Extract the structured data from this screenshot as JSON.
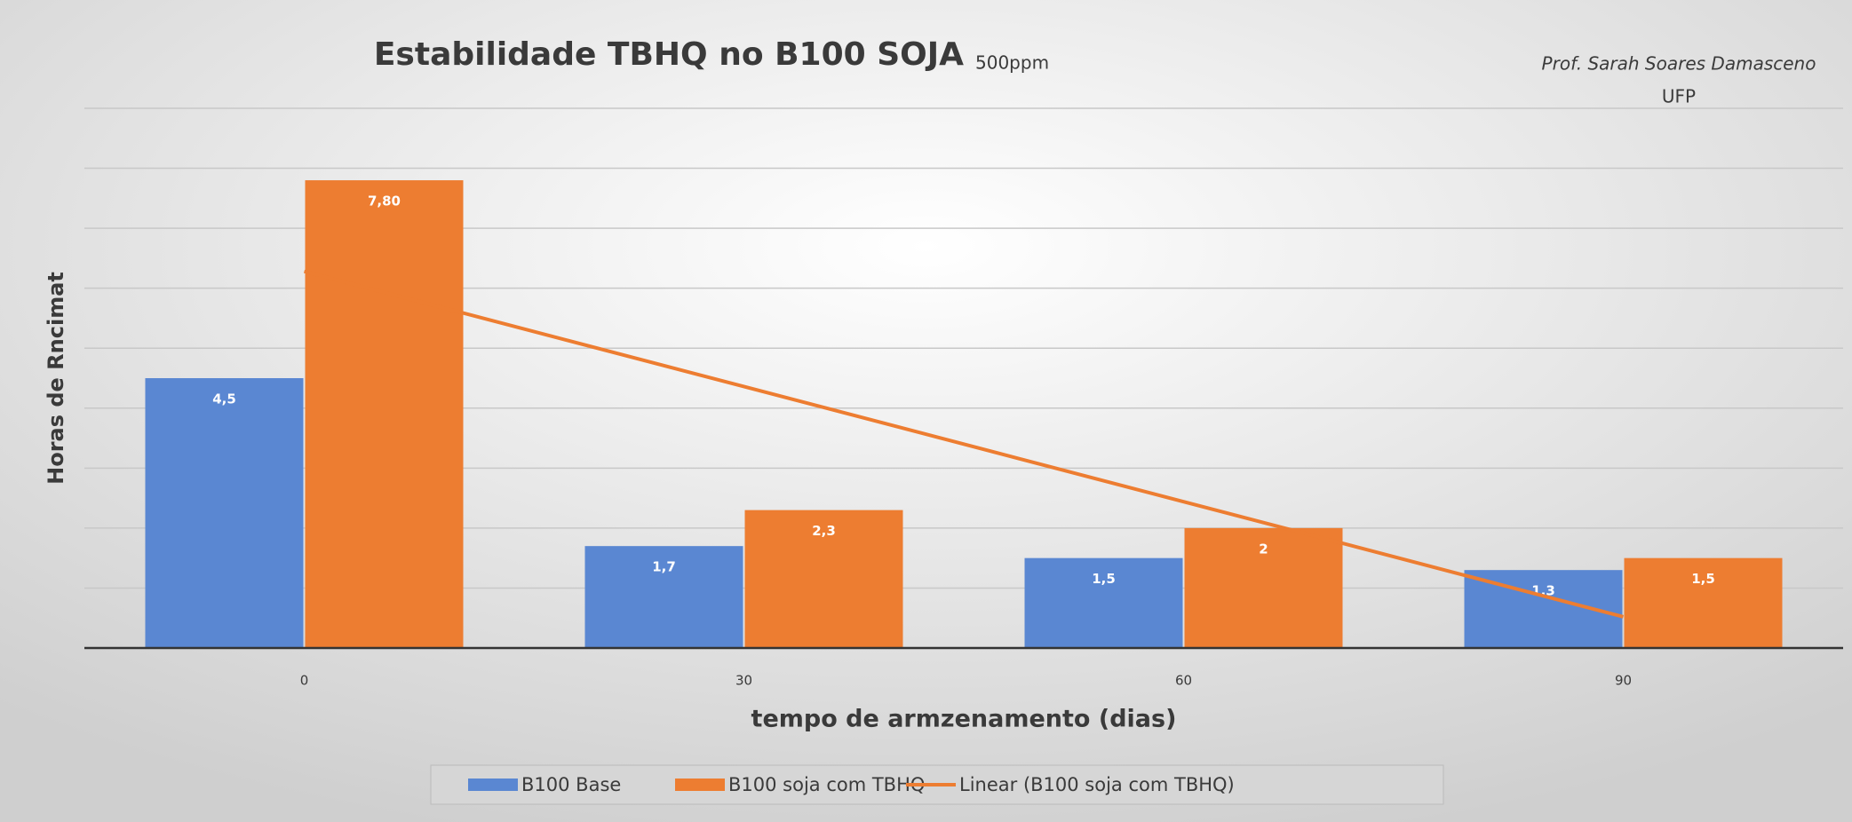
{
  "chart_data": {
    "type": "bar",
    "title": "Estabilidade TBHQ no B100 SOJA",
    "subtitle": "500ppm",
    "annotations": [
      "Prof. Sarah Soares Damasceno",
      "UFP"
    ],
    "y_label": "Horas de Rncimat",
    "x_label": "tempo de armzenamento (dias)",
    "categories": [
      "0",
      "30",
      "60",
      "90"
    ],
    "series": [
      {
        "name": "B100 Base",
        "color": "#5a87d2",
        "values": [
          4.5,
          1.7,
          1.5,
          1.3
        ],
        "value_labels": [
          "4,5",
          "1,7",
          "1,5",
          "1,3"
        ]
      },
      {
        "name": "B100 soja com TBHQ",
        "color": "#ed7d31",
        "values": [
          7.8,
          2.3,
          2,
          1.5
        ],
        "value_labels": [
          "7,80",
          "2,3",
          "2",
          "1,5"
        ]
      }
    ],
    "trendline": {
      "name": "Linear (B100 soja com TBHQ)",
      "color": "#ed7d31",
      "values": [
        6.28,
        4.36,
        2.44,
        0.52
      ]
    },
    "ylim": [
      0,
      9
    ],
    "yticks": [
      0,
      1,
      2,
      3,
      4,
      5,
      6,
      7,
      8,
      9
    ],
    "grid": true,
    "legend": "bottom"
  }
}
